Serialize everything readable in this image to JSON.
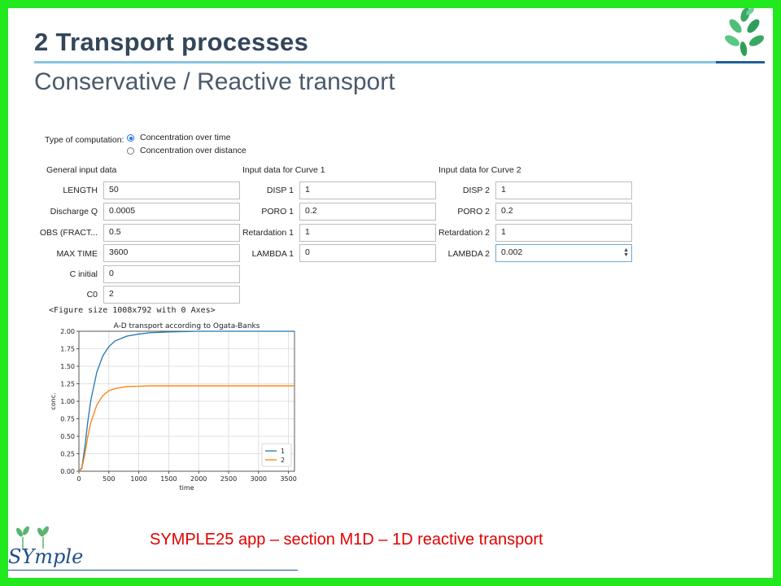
{
  "slide": {
    "title": "2  Transport processes",
    "subtitle": "Conservative / Reactive transport",
    "footer": "SYMPLE25 app – section M1D – 1D reactive transport",
    "logo_text": "SYmple"
  },
  "form": {
    "computation_label": "Type of computation:",
    "option_time": "Concentration over time",
    "option_distance": "Concentration over distance",
    "general_header": "General input data",
    "curve1_header": "Input data for Curve 1",
    "curve2_header": "Input data for Curve 2",
    "general": [
      {
        "label": "LENGTH",
        "value": "50"
      },
      {
        "label": "Discharge Q",
        "value": "0.0005"
      },
      {
        "label": "OBS (FRACT...",
        "value": "0.5"
      },
      {
        "label": "MAX TIME",
        "value": "3600"
      },
      {
        "label": "C initial",
        "value": "0"
      },
      {
        "label": "C0",
        "value": "2"
      }
    ],
    "curve1": [
      {
        "label": "DISP 1",
        "value": "1"
      },
      {
        "label": "PORO 1",
        "value": "0.2"
      },
      {
        "label": "Retardation 1",
        "value": "1"
      },
      {
        "label": "LAMBDA 1",
        "value": "0"
      }
    ],
    "curve2": [
      {
        "label": "DISP 2",
        "value": "1"
      },
      {
        "label": "PORO 2",
        "value": "0.2"
      },
      {
        "label": "Retardation 2",
        "value": "1"
      },
      {
        "label": "LAMBDA 2",
        "value": "0.002"
      }
    ]
  },
  "figure_caption": "<Figure size 1008x792 with 0 Axes>",
  "colors": {
    "frame": "#22e81e",
    "series1": "#1f77b4",
    "series2": "#ff7f0e",
    "footer": "#e00000"
  },
  "chart_data": {
    "type": "line",
    "title": "A-D transport according to Ogata-Banks",
    "xlabel": "time",
    "ylabel": "conc.",
    "xlim": [
      0,
      3600
    ],
    "ylim": [
      0,
      2.0
    ],
    "xticks": [
      0,
      500,
      1000,
      1500,
      2000,
      2500,
      3000,
      3500
    ],
    "yticks": [
      0.0,
      0.25,
      0.5,
      0.75,
      1.0,
      1.25,
      1.5,
      1.75,
      2.0
    ],
    "ytick_labels": [
      "0.00",
      "0.25",
      "0.50",
      "0.75",
      "1.00",
      "1.25",
      "1.50",
      "1.75",
      "2.00"
    ],
    "grid": true,
    "legend": "lower-right",
    "series": [
      {
        "name": "1",
        "x": [
          0,
          50,
          100,
          150,
          200,
          300,
          400,
          500,
          600,
          800,
          1000,
          1200,
          1500,
          2000,
          2500,
          3000,
          3600
        ],
        "values": [
          0,
          0.05,
          0.35,
          0.72,
          1.02,
          1.42,
          1.65,
          1.78,
          1.86,
          1.93,
          1.96,
          1.98,
          1.99,
          2.0,
          2.0,
          2.0,
          2.0
        ]
      },
      {
        "name": "2",
        "x": [
          0,
          50,
          100,
          150,
          200,
          300,
          400,
          500,
          600,
          800,
          1000,
          1200,
          1500,
          2000,
          2500,
          3000,
          3600
        ],
        "values": [
          0,
          0.04,
          0.25,
          0.5,
          0.7,
          0.95,
          1.08,
          1.15,
          1.18,
          1.21,
          1.215,
          1.22,
          1.22,
          1.22,
          1.22,
          1.22,
          1.22
        ]
      }
    ]
  }
}
